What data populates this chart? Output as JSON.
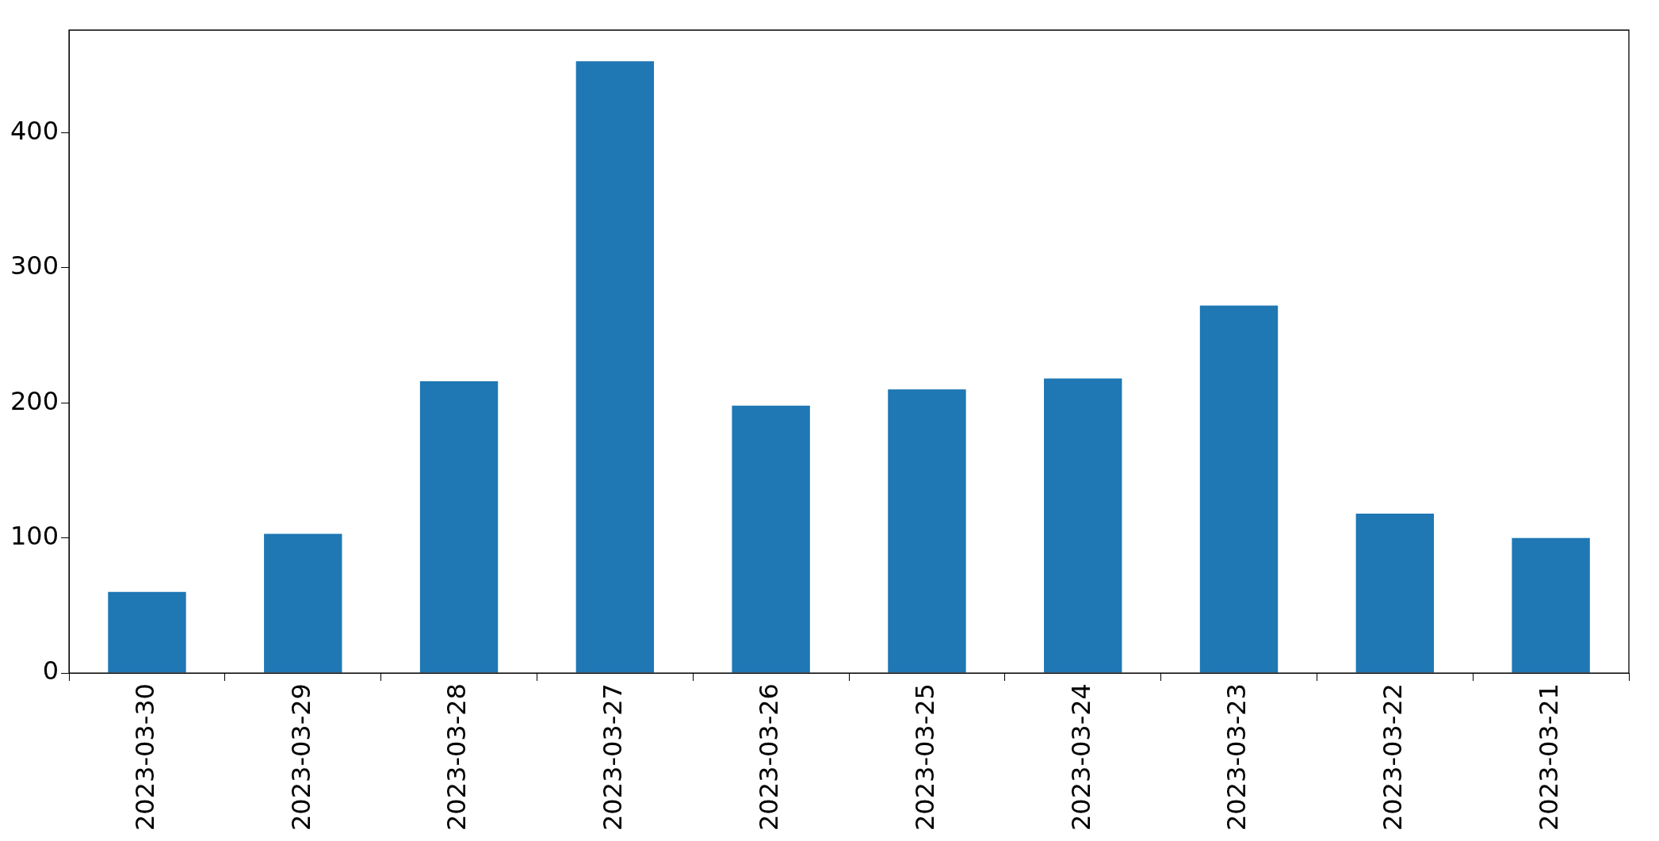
{
  "chart_data": {
    "type": "bar",
    "categories": [
      "2023-03-30",
      "2023-03-29",
      "2023-03-28",
      "2023-03-27",
      "2023-03-26",
      "2023-03-25",
      "2023-03-24",
      "2023-03-23",
      "2023-03-22",
      "2023-03-21"
    ],
    "values": [
      60,
      103,
      216,
      453,
      198,
      210,
      218,
      272,
      118,
      100
    ],
    "color": "#1f77b4",
    "ylim": [
      0,
      476
    ],
    "yticks": [
      0,
      100,
      200,
      300,
      400
    ]
  }
}
